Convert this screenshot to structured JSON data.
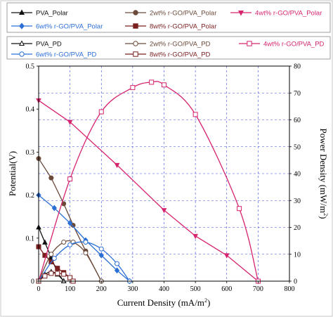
{
  "chart_data": {
    "type": "line",
    "xlabel": "Current Density (mA/m",
    "xlabel_sup": "2",
    "xlabel_close": ")",
    "ylabel": "Potential(V)",
    "y2label": "Power Density (mW/m",
    "y2label_sup": "2",
    "y2label_close": ")",
    "xlim": [
      0,
      800
    ],
    "ylim": [
      0,
      0.5
    ],
    "y2lim": [
      0,
      80
    ],
    "xticks": [
      "0",
      "100",
      "200",
      "300",
      "400",
      "500",
      "600",
      "700",
      "800"
    ],
    "yticks": [
      "0",
      "0.1",
      "0.2",
      "0.3",
      "0.4",
      "0.5"
    ],
    "y2ticks": [
      "0",
      "10",
      "20",
      "30",
      "40",
      "50",
      "60",
      "70",
      "80"
    ],
    "grid": true,
    "series": [
      {
        "name": "PVA_Polar",
        "axis": "left",
        "color": "#111111",
        "marker": "triangle",
        "filled": true,
        "x": [
          0,
          20,
          40,
          60,
          80
        ],
        "y": [
          0.125,
          0.09,
          0.055,
          0.02,
          0.0
        ]
      },
      {
        "name": "2wt% r-GO/PVA_Polar",
        "axis": "left",
        "color": "#6b4a3a",
        "marker": "circle",
        "filled": true,
        "x": [
          0,
          40,
          80,
          110,
          150,
          200
        ],
        "y": [
          0.285,
          0.24,
          0.18,
          0.13,
          0.07,
          0.0
        ]
      },
      {
        "name": "4wt% r-GO/PVA_Polar",
        "axis": "left",
        "color": "#d6246e",
        "marker": "triangle-down",
        "filled": true,
        "x": [
          0,
          100,
          250,
          400,
          500,
          600,
          700
        ],
        "y": [
          0.42,
          0.37,
          0.27,
          0.165,
          0.105,
          0.06,
          0.0
        ]
      },
      {
        "name": "6wt% r-GO/PVA_Polar",
        "axis": "left",
        "color": "#2b6fd6",
        "marker": "diamond",
        "filled": true,
        "x": [
          0,
          50,
          100,
          150,
          200,
          250,
          290
        ],
        "y": [
          0.2,
          0.17,
          0.135,
          0.095,
          0.06,
          0.025,
          0.0
        ]
      },
      {
        "name": "8wt% r-GO/PVA_Polar",
        "axis": "left",
        "color": "#7a1f1f",
        "marker": "square",
        "filled": true,
        "x": [
          0,
          20,
          40,
          60,
          80,
          100,
          110
        ],
        "y": [
          0.08,
          0.06,
          0.045,
          0.03,
          0.02,
          0.008,
          0.0
        ]
      },
      {
        "name": "PVA_PD",
        "axis": "right",
        "color": "#111111",
        "marker": "triangle",
        "filled": false,
        "x": [
          0,
          20,
          40,
          60,
          80
        ],
        "y": [
          0,
          2.5,
          3.5,
          2.5,
          0
        ]
      },
      {
        "name": "2wt% r-GO/PVA_PD",
        "axis": "right",
        "color": "#6b4a3a",
        "marker": "circle",
        "filled": false,
        "x": [
          0,
          40,
          80,
          110,
          150,
          200
        ],
        "y": [
          0,
          10,
          14.5,
          14.5,
          10.5,
          0
        ]
      },
      {
        "name": "4wt% r-GO/PVA_PD",
        "axis": "right",
        "color": "#d6246e",
        "marker": "square",
        "filled": false,
        "x": [
          0,
          100,
          200,
          300,
          360,
          400,
          500,
          640,
          700
        ],
        "y": [
          0,
          38,
          63,
          72,
          74,
          73,
          62,
          27,
          0
        ]
      },
      {
        "name": "6wt% r-GO/PVA_PD",
        "axis": "right",
        "color": "#2b6fd6",
        "marker": "circle",
        "filled": false,
        "x": [
          0,
          50,
          100,
          150,
          200,
          250,
          290
        ],
        "y": [
          0,
          8.5,
          13.5,
          14.5,
          12,
          6.5,
          0
        ]
      },
      {
        "name": "8wt% r-GO/PVA_PD",
        "axis": "right",
        "color": "#7a1f1f",
        "marker": "square",
        "filled": false,
        "x": [
          0,
          20,
          40,
          60,
          80,
          100,
          110
        ],
        "y": [
          0,
          1.9,
          2.9,
          2.9,
          2.6,
          1.3,
          0
        ]
      }
    ]
  }
}
